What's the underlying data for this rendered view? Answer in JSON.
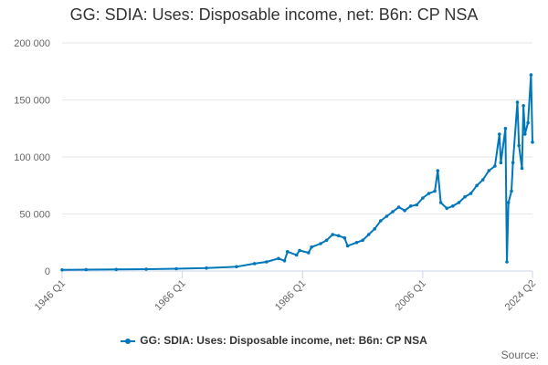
{
  "chart_data": {
    "type": "line",
    "title": "GG: SDIA: Uses: Disposable income, net: B6n: CP NSA",
    "xlabel": "",
    "ylabel": "",
    "ylim": [
      0,
      200000
    ],
    "y_ticks": [
      "0",
      "50 000",
      "100 000",
      "150 000",
      "200 000"
    ],
    "x_ticks": [
      "1946 Q1",
      "1966 Q1",
      "1986 Q1",
      "2006 Q1",
      "2024 Q2"
    ],
    "x_range": [
      "1946 Q1",
      "2024 Q2"
    ],
    "grid": "horizontal",
    "legend_position": "bottom",
    "series": [
      {
        "name": "GG: SDIA: Uses: Disposable income, net: B6n: CP NSA",
        "color": "#0077bb",
        "points": [
          [
            "1946 Q1",
            1000
          ],
          [
            "1950 Q1",
            1200
          ],
          [
            "1955 Q1",
            1400
          ],
          [
            "1960 Q1",
            1600
          ],
          [
            "1965 Q1",
            2000
          ],
          [
            "1970 Q1",
            2600
          ],
          [
            "1975 Q1",
            3800
          ],
          [
            "1978 Q1",
            6500
          ],
          [
            "1980 Q1",
            8000
          ],
          [
            "1982 Q1",
            11000
          ],
          [
            "1983 Q1",
            9000
          ],
          [
            "1983 Q3",
            17000
          ],
          [
            "1985 Q1",
            14000
          ],
          [
            "1985 Q3",
            18000
          ],
          [
            "1987 Q1",
            16000
          ],
          [
            "1987 Q3",
            21000
          ],
          [
            "1989 Q1",
            24000
          ],
          [
            "1990 Q1",
            27000
          ],
          [
            "1991 Q1",
            32000
          ],
          [
            "1992 Q1",
            31000
          ],
          [
            "1993 Q1",
            29000
          ],
          [
            "1993 Q3",
            22000
          ],
          [
            "1995 Q1",
            25000
          ],
          [
            "1996 Q1",
            27000
          ],
          [
            "1997 Q1",
            32000
          ],
          [
            "1998 Q1",
            37000
          ],
          [
            "1999 Q1",
            44000
          ],
          [
            "2000 Q1",
            48000
          ],
          [
            "2001 Q1",
            52000
          ],
          [
            "2002 Q1",
            56000
          ],
          [
            "2003 Q1",
            53000
          ],
          [
            "2004 Q1",
            57000
          ],
          [
            "2005 Q1",
            58000
          ],
          [
            "2006 Q1",
            64000
          ],
          [
            "2007 Q1",
            68000
          ],
          [
            "2008 Q1",
            70000
          ],
          [
            "2008 Q3",
            88000
          ],
          [
            "2009 Q1",
            60000
          ],
          [
            "2010 Q1",
            55000
          ],
          [
            "2011 Q1",
            57000
          ],
          [
            "2012 Q1",
            60000
          ],
          [
            "2013 Q1",
            65000
          ],
          [
            "2014 Q1",
            68000
          ],
          [
            "2015 Q1",
            75000
          ],
          [
            "2016 Q1",
            80000
          ],
          [
            "2017 Q1",
            88000
          ],
          [
            "2018 Q1",
            92000
          ],
          [
            "2018 Q4",
            120000
          ],
          [
            "2019 Q1",
            95000
          ],
          [
            "2019 Q4",
            125000
          ],
          [
            "2020 Q1",
            8000
          ],
          [
            "2020 Q2",
            60000
          ],
          [
            "2020 Q4",
            70000
          ],
          [
            "2021 Q1",
            95000
          ],
          [
            "2021 Q4",
            148000
          ],
          [
            "2022 Q1",
            110000
          ],
          [
            "2022 Q3",
            90000
          ],
          [
            "2022 Q4",
            145000
          ],
          [
            "2023 Q1",
            120000
          ],
          [
            "2023 Q3",
            130000
          ],
          [
            "2024 Q1",
            172000
          ],
          [
            "2024 Q2",
            113000
          ]
        ]
      }
    ]
  },
  "source": {
    "label": "Source:"
  }
}
